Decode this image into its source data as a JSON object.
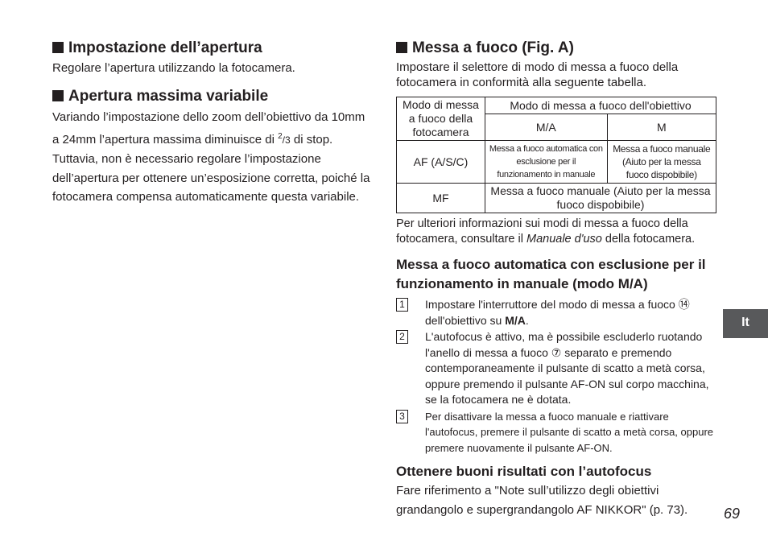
{
  "left": {
    "section1": {
      "heading": "Impostazione dell’apertura",
      "body": "Regolare l’apertura utilizzando la fotocamera."
    },
    "section2": {
      "heading": "Apertura massima variabile",
      "para1": [
        "Variando l’impostazione dello zoom dell’obiettivo da 10mm a 24mm l’apertura massima diminuisce di ",
        "2",
        "/3",
        " di stop."
      ],
      "para2": "Tuttavia, non è necessario regolare l’impostazione dell’apertura per ottenere un’esposizione corretta, poiché la fotocamera compensa automaticamente questa variabile."
    }
  },
  "right": {
    "heading": "Messa a fuoco (Fig. A)",
    "intro": "Impostare il selettore di modo di messa a fuoco della fotocamera in conformità alla seguente tabella.",
    "table": {
      "header": [
        "Modo di messa a fuoco della fotocamera",
        "Modo di messa a fuoco dell'obiettivo"
      ],
      "subheader": [
        "M/A",
        "M"
      ],
      "rows": [
        [
          "AF (A/S/C)",
          "Messa a fuoco automatica con esclusione per il funzionamento in manuale",
          "Messa a fuoco manuale (Aiuto per la messa fuoco dispobibile)"
        ],
        [
          "MF",
          "Messa a fuoco manuale (Aiuto per la messa fuoco dispobibile)"
        ]
      ]
    },
    "note": [
      "Per ulteriori informazioni sui modi di messa a fuoco della fotocamera, consultare il ",
      "Manuale d'uso",
      " della fotocamera."
    ],
    "subheading": "Messa a fuoco automatica con esclusione per il funzionamento in manuale (modo M/A)",
    "steps": [
      {
        "number": "1",
        "text": [
          "Impostare l'interruttore del modo di messa a fuoco ",
          "⑭",
          " dell'obiettivo su ",
          "M/A",
          "."
        ]
      },
      {
        "number": "2",
        "text": [
          "L'autofocus è attivo, ma è possibile escluderlo ruotando l'anello di messa a fuoco ",
          "⑦",
          " separato e premendo contemporaneamente il pulsante di scatto a metà corsa, oppure premendo il pulsante AF-ON sul corpo macchina, se la fotocamera ne è dotata."
        ]
      },
      {
        "number": "3",
        "text": [
          "Per disattivare la messa a fuoco manuale e riattivare l'autofocus, premere il pulsante di scatto a metà corsa, oppure premere nuovamente il pulsante AF-ON."
        ]
      }
    ],
    "tips": {
      "heading": "Ottenere buoni risultati con l’autofocus",
      "body": "Fare riferimento a \"Note sull’utilizzo degli obiettivi grandangolo e supergrandangolo AF NIKKOR\" (p. 73)."
    }
  },
  "page_number": "69",
  "language_tab": "It"
}
